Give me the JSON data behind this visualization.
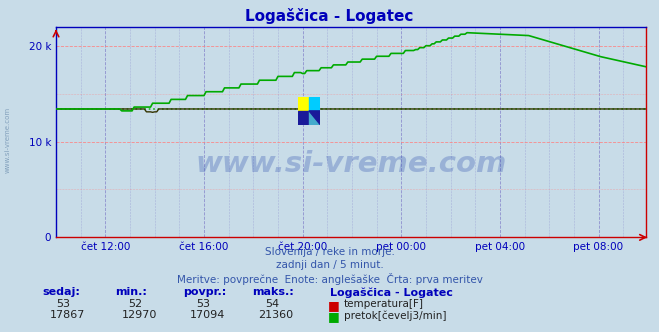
{
  "title": "Logaščica - Logatec",
  "bg_color": "#c8dce8",
  "plot_bg_color": "#c8dce8",
  "grid_h_color": "#ff8080",
  "grid_v_color": "#8888cc",
  "axis_color": "#0000bb",
  "title_color": "#0000bb",
  "watermark_text": "www.si-vreme.com",
  "watermark_color": "#1a3a6a",
  "subtitle_lines": [
    "Slovenija / reke in morje.",
    "zadnji dan / 5 minut.",
    "Meritve: povprečne  Enote: anglešaške  Črta: prva meritev"
  ],
  "legend_title": "Logaščica - Logatec",
  "legend_entries": [
    {
      "label": "temperatura[F]",
      "color": "#cc0000"
    },
    {
      "label": "pretok[čevelj3/min]",
      "color": "#00aa00"
    }
  ],
  "table_headers": [
    "sedaj:",
    "min.:",
    "povpr.:",
    "maks.:"
  ],
  "table_rows": [
    {
      "values": [
        "53",
        "52",
        "53",
        "54"
      ],
      "color": "#cc0000"
    },
    {
      "values": [
        "17867",
        "12970",
        "17094",
        "21360"
      ],
      "color": "#00aa00"
    }
  ],
  "ylim": [
    0,
    22000
  ],
  "yticks": [
    0,
    10000,
    20000
  ],
  "ytick_labels": [
    "0",
    "10 k",
    "20 k"
  ],
  "x_tick_labels": [
    "čet 12:00",
    "čet 16:00",
    "čet 20:00",
    "pet 00:00",
    "pet 04:00",
    "pet 08:00"
  ],
  "x_tick_positions": [
    24,
    72,
    120,
    168,
    216,
    264
  ],
  "total_points": 288,
  "temp_line_color": "#333300",
  "flow_line_color": "#00aa00",
  "avg_line_color": "#00aa00",
  "avg_line_value": 13400,
  "spine_color": "#0000bb",
  "bottom_spine_color": "#cc0000",
  "right_spine_color": "#cc0000"
}
